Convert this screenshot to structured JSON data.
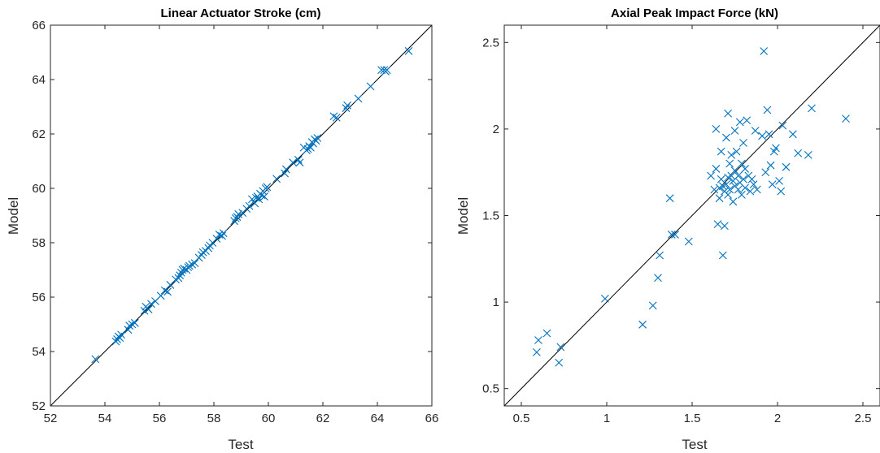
{
  "chart_data": [
    {
      "type": "scatter",
      "title": "Linear Actuator Stroke (cm)",
      "xlabel": "Test",
      "ylabel": "Model",
      "xlim": [
        52,
        66
      ],
      "ylim": [
        52,
        66
      ],
      "xticks": [
        52,
        54,
        56,
        58,
        60,
        62,
        64,
        66
      ],
      "yticks": [
        52,
        54,
        56,
        58,
        60,
        62,
        64,
        66
      ],
      "x_tick_labels": [
        "52",
        "54",
        "56",
        "58",
        "60",
        "62",
        "64",
        "66"
      ],
      "y_tick_labels": [
        "52",
        "54",
        "56",
        "58",
        "60",
        "62",
        "64",
        "66"
      ],
      "marker": "x",
      "marker_color": "#0072BD",
      "reference_line": "y = x",
      "grid": false,
      "points": [
        [
          53.65,
          53.72
        ],
        [
          54.4,
          54.37
        ],
        [
          54.45,
          54.45
        ],
        [
          54.5,
          54.55
        ],
        [
          54.55,
          54.5
        ],
        [
          54.6,
          54.62
        ],
        [
          54.85,
          54.8
        ],
        [
          54.9,
          54.95
        ],
        [
          55.0,
          55.0
        ],
        [
          55.1,
          55.05
        ],
        [
          55.45,
          55.5
        ],
        [
          55.5,
          55.65
        ],
        [
          55.55,
          55.6
        ],
        [
          55.6,
          55.55
        ],
        [
          55.7,
          55.75
        ],
        [
          55.85,
          55.85
        ],
        [
          56.05,
          56.05
        ],
        [
          56.2,
          56.25
        ],
        [
          56.3,
          56.2
        ],
        [
          56.4,
          56.45
        ],
        [
          56.6,
          56.65
        ],
        [
          56.7,
          56.7
        ],
        [
          56.75,
          56.8
        ],
        [
          56.8,
          56.9
        ],
        [
          56.85,
          57.0
        ],
        [
          56.9,
          57.05
        ],
        [
          57.0,
          57.0
        ],
        [
          57.05,
          57.1
        ],
        [
          57.1,
          57.15
        ],
        [
          57.2,
          57.2
        ],
        [
          57.3,
          57.25
        ],
        [
          57.45,
          57.45
        ],
        [
          57.55,
          57.55
        ],
        [
          57.6,
          57.65
        ],
        [
          57.7,
          57.7
        ],
        [
          57.8,
          57.8
        ],
        [
          57.85,
          57.9
        ],
        [
          57.95,
          58.0
        ],
        [
          58.1,
          58.15
        ],
        [
          58.2,
          58.3
        ],
        [
          58.3,
          58.25
        ],
        [
          58.35,
          58.35
        ],
        [
          58.75,
          58.8
        ],
        [
          58.8,
          58.9
        ],
        [
          58.85,
          58.95
        ],
        [
          58.9,
          59.05
        ],
        [
          59.05,
          59.1
        ],
        [
          59.2,
          59.25
        ],
        [
          59.3,
          59.35
        ],
        [
          59.4,
          59.6
        ],
        [
          59.5,
          59.45
        ],
        [
          59.55,
          59.65
        ],
        [
          59.6,
          59.7
        ],
        [
          59.65,
          59.6
        ],
        [
          59.7,
          59.8
        ],
        [
          59.75,
          59.75
        ],
        [
          59.8,
          59.9
        ],
        [
          59.85,
          59.7
        ],
        [
          59.9,
          60.0
        ],
        [
          59.95,
          60.05
        ],
        [
          60.3,
          60.35
        ],
        [
          60.6,
          60.55
        ],
        [
          60.65,
          60.7
        ],
        [
          60.9,
          60.95
        ],
        [
          61.1,
          61.05
        ],
        [
          61.15,
          60.95
        ],
        [
          61.3,
          61.5
        ],
        [
          61.4,
          61.4
        ],
        [
          61.45,
          61.45
        ],
        [
          61.5,
          61.55
        ],
        [
          61.55,
          61.5
        ],
        [
          61.6,
          61.7
        ],
        [
          61.65,
          61.65
        ],
        [
          61.7,
          61.8
        ],
        [
          61.75,
          61.75
        ],
        [
          61.8,
          61.85
        ],
        [
          62.4,
          62.65
        ],
        [
          62.5,
          62.6
        ],
        [
          62.85,
          62.95
        ],
        [
          62.9,
          63.05
        ],
        [
          63.3,
          63.3
        ],
        [
          63.75,
          63.75
        ],
        [
          64.15,
          64.35
        ],
        [
          64.25,
          64.35
        ],
        [
          64.3,
          64.3
        ],
        [
          64.35,
          64.35
        ],
        [
          65.15,
          65.05
        ]
      ]
    },
    {
      "type": "scatter",
      "title": "Axial Peak Impact Force (kN)",
      "xlabel": "Test",
      "ylabel": "Model",
      "xlim": [
        0.4,
        2.6
      ],
      "ylim": [
        0.4,
        2.6
      ],
      "xticks": [
        0.5,
        1,
        1.5,
        2,
        2.5
      ],
      "yticks": [
        0.5,
        1,
        1.5,
        2,
        2.5
      ],
      "x_tick_labels": [
        "0.5",
        "1",
        "1.5",
        "2",
        "2.5"
      ],
      "y_tick_labels": [
        "0.5",
        "1",
        "1.5",
        "2",
        "2.5"
      ],
      "marker": "x",
      "marker_color": "#0072BD",
      "reference_line": "y = x",
      "grid": false,
      "points": [
        [
          0.59,
          0.71
        ],
        [
          0.6,
          0.78
        ],
        [
          0.65,
          0.82
        ],
        [
          0.72,
          0.65
        ],
        [
          0.73,
          0.74
        ],
        [
          0.99,
          1.02
        ],
        [
          1.21,
          0.87
        ],
        [
          1.27,
          0.98
        ],
        [
          1.3,
          1.14
        ],
        [
          1.31,
          1.27
        ],
        [
          1.37,
          1.6
        ],
        [
          1.38,
          1.39
        ],
        [
          1.4,
          1.39
        ],
        [
          1.48,
          1.35
        ],
        [
          1.61,
          1.73
        ],
        [
          1.63,
          1.65
        ],
        [
          1.64,
          1.77
        ],
        [
          1.64,
          2.0
        ],
        [
          1.65,
          1.45
        ],
        [
          1.66,
          1.6
        ],
        [
          1.66,
          1.66
        ],
        [
          1.67,
          1.71
        ],
        [
          1.67,
          1.87
        ],
        [
          1.68,
          1.27
        ],
        [
          1.68,
          1.67
        ],
        [
          1.69,
          1.44
        ],
        [
          1.69,
          1.64
        ],
        [
          1.7,
          1.68
        ],
        [
          1.7,
          1.95
        ],
        [
          1.71,
          2.09
        ],
        [
          1.71,
          1.72
        ],
        [
          1.71,
          1.62
        ],
        [
          1.72,
          1.65
        ],
        [
          1.72,
          1.8
        ],
        [
          1.73,
          1.73
        ],
        [
          1.73,
          1.85
        ],
        [
          1.74,
          1.7
        ],
        [
          1.74,
          1.58
        ],
        [
          1.75,
          1.67
        ],
        [
          1.75,
          1.76
        ],
        [
          1.75,
          1.99
        ],
        [
          1.76,
          1.87
        ],
        [
          1.77,
          1.65
        ],
        [
          1.77,
          1.73
        ],
        [
          1.78,
          1.69
        ],
        [
          1.78,
          2.04
        ],
        [
          1.79,
          1.62
        ],
        [
          1.79,
          1.8
        ],
        [
          1.8,
          1.92
        ],
        [
          1.8,
          1.71
        ],
        [
          1.81,
          1.77
        ],
        [
          1.81,
          1.66
        ],
        [
          1.82,
          2.05
        ],
        [
          1.83,
          1.73
        ],
        [
          1.84,
          1.64
        ],
        [
          1.85,
          1.71
        ],
        [
          1.86,
          1.68
        ],
        [
          1.87,
          1.99
        ],
        [
          1.88,
          1.65
        ],
        [
          1.91,
          1.96
        ],
        [
          1.92,
          2.45
        ],
        [
          1.93,
          1.75
        ],
        [
          1.94,
          2.11
        ],
        [
          1.95,
          1.97
        ],
        [
          1.96,
          1.79
        ],
        [
          1.97,
          1.68
        ],
        [
          1.98,
          1.87
        ],
        [
          1.99,
          1.89
        ],
        [
          2.01,
          1.7
        ],
        [
          2.02,
          1.64
        ],
        [
          2.03,
          2.02
        ],
        [
          2.05,
          1.78
        ],
        [
          2.09,
          1.97
        ],
        [
          2.12,
          1.86
        ],
        [
          2.18,
          1.85
        ],
        [
          2.2,
          2.12
        ],
        [
          2.4,
          2.06
        ]
      ]
    }
  ]
}
